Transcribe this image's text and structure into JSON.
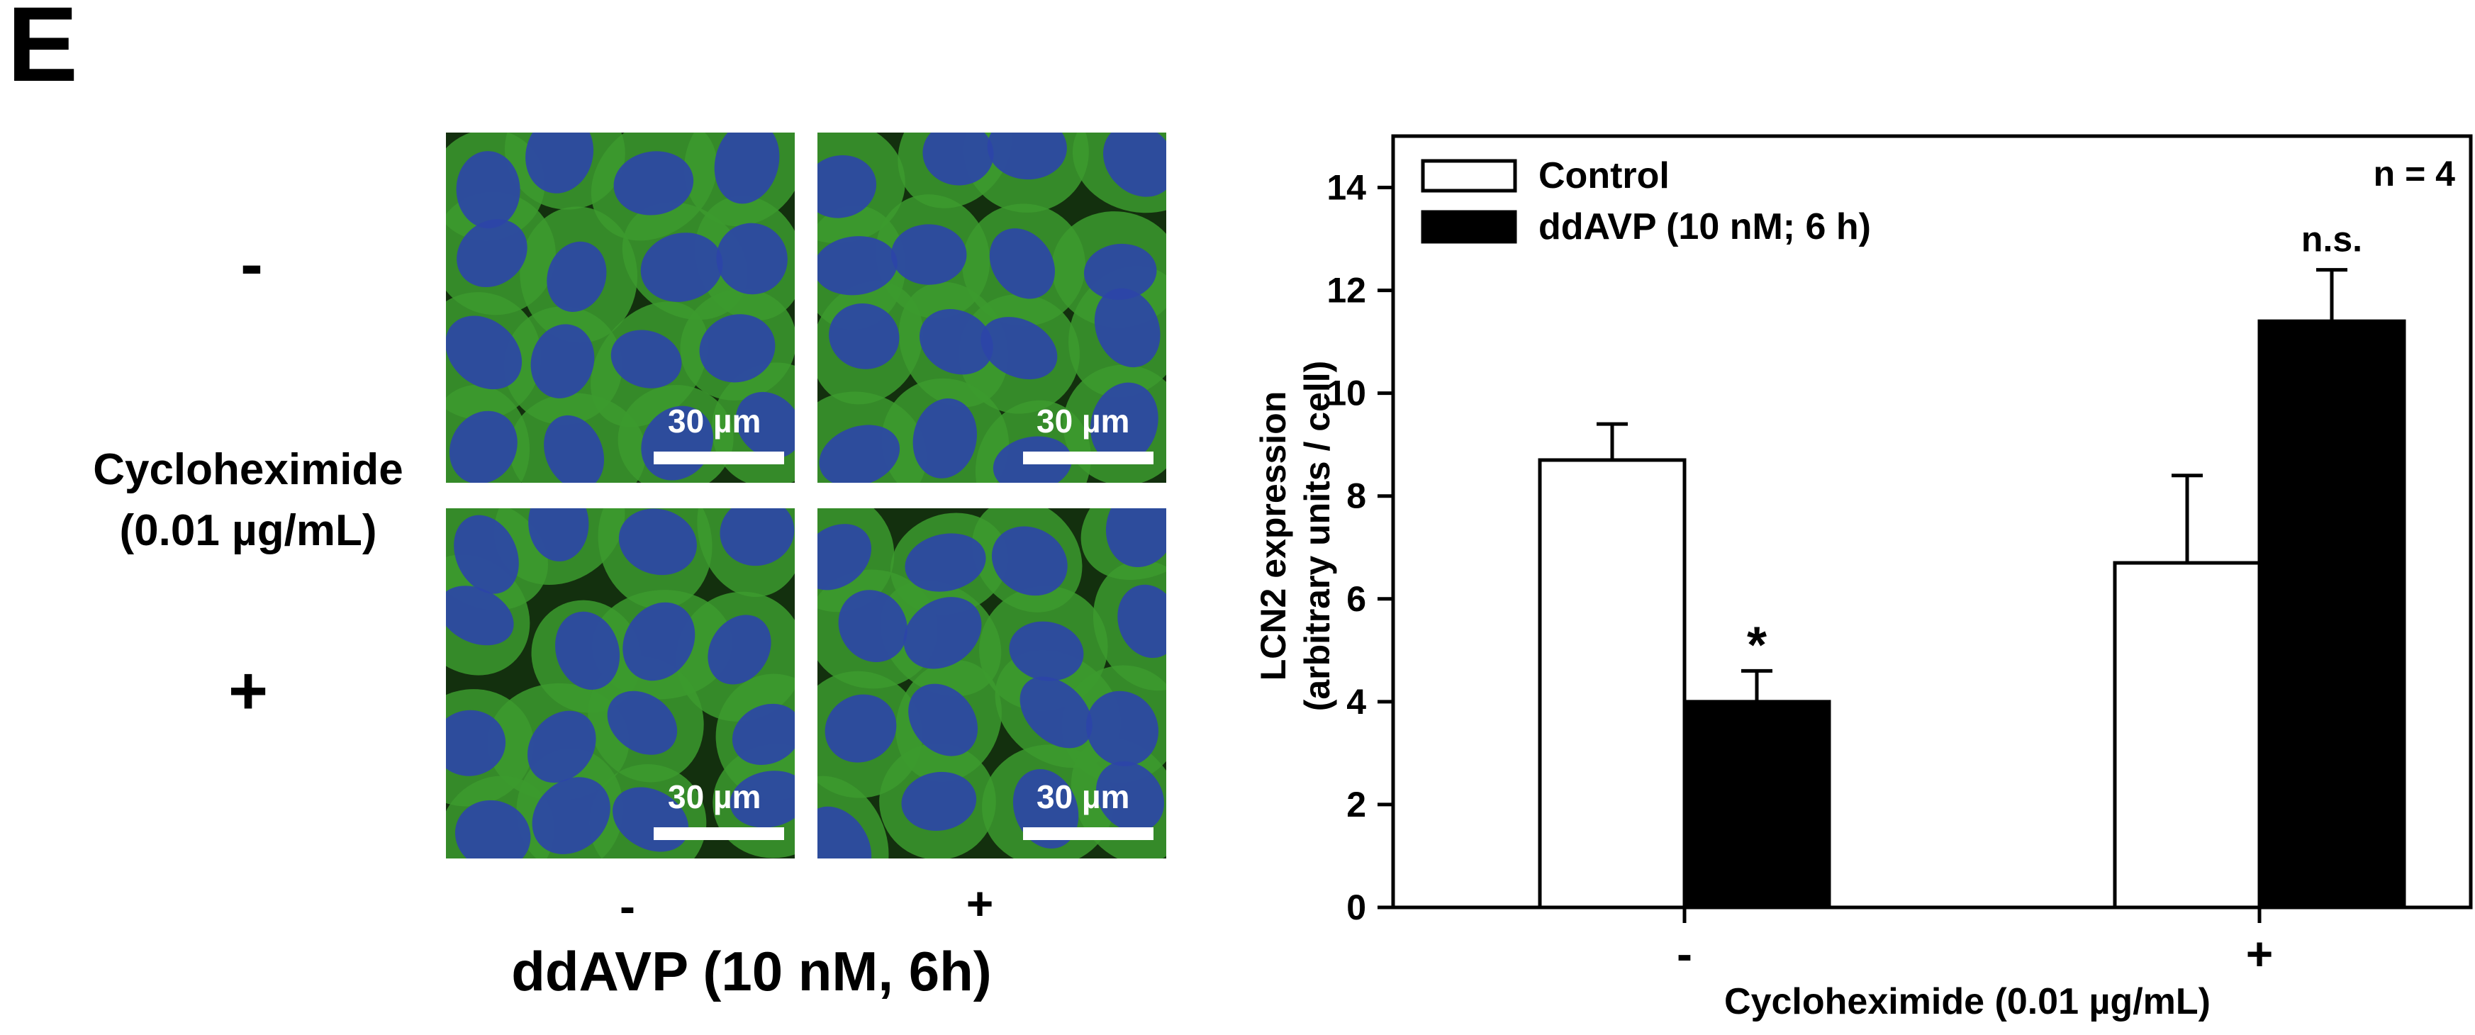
{
  "panel_letter": "E",
  "left_panel": {
    "row_labels": [
      "-",
      "+"
    ],
    "row_axis_label_line1": "Cycloheximide",
    "row_axis_label_line2": "(0.01 µg/mL)",
    "col_labels": [
      "-",
      "+"
    ],
    "col_axis_label": "ddAVP (10 nM, 6h)",
    "scale_bar_label": "30 µm",
    "colors": {
      "cytoplasm": "#3c9a2e",
      "nucleus": "#2c45a8",
      "background": "#13300e"
    }
  },
  "chart_data": {
    "type": "bar",
    "categories": [
      "-",
      "+"
    ],
    "series": [
      {
        "name": "Control",
        "values": [
          8.7,
          6.7
        ],
        "errors": [
          0.7,
          1.7
        ],
        "color": "#ffffff"
      },
      {
        "name": "ddAVP (10 nM; 6 h)",
        "values": [
          4.0,
          11.4
        ],
        "errors": [
          0.6,
          1.0
        ],
        "color": "#000000"
      }
    ],
    "significance": [
      [
        "",
        "*"
      ],
      [
        "",
        "n.s."
      ]
    ],
    "annotation": "n = 4",
    "xlabel": "Cycloheximide (0.01 µg/mL)",
    "ylabel_line1": "LCN2 expression",
    "ylabel_line2": "(arbitrary units / cell)",
    "ylim": [
      0,
      15
    ],
    "yticks": [
      "0",
      "2",
      "4",
      "6",
      "8",
      "10",
      "12",
      "14"
    ],
    "legend_placement": "top-left",
    "grid": false
  }
}
